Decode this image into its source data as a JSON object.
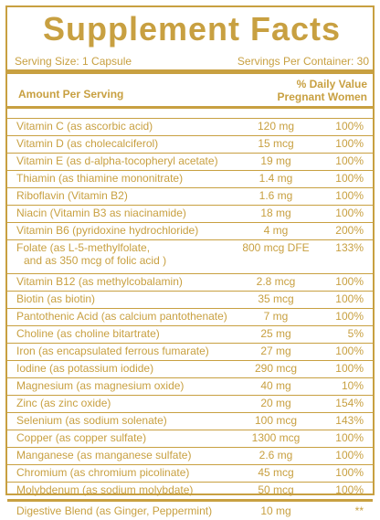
{
  "title": "Supplement Facts",
  "serving_size": "Serving Size: 1 Capsule",
  "servings_per_container": "Servings Per Container: 30",
  "header": {
    "amount_per_serving": "Amount Per Serving",
    "daily_value_line1": "% Daily Value",
    "daily_value_line2": "Pregnant Women"
  },
  "rows": [
    {
      "name": "Vitamin C (as ascorbic acid)",
      "amount": "120 mg",
      "dv": "100%"
    },
    {
      "name": "Vitamin D (as cholecalciferol)",
      "amount": "15 mcg",
      "dv": "100%"
    },
    {
      "name": "Vitamin E (as d-alpha-tocopheryl acetate)",
      "amount": "19 mg",
      "dv": "100%"
    },
    {
      "name": "Thiamin (as thiamine mononitrate)",
      "amount": "1.4 mg",
      "dv": "100%"
    },
    {
      "name": "Riboflavin (Vitamin B2)",
      "amount": "1.6 mg",
      "dv": "100%"
    },
    {
      "name": "Niacin (Vitamin B3 as niacinamide)",
      "amount": "18 mg",
      "dv": "100%"
    },
    {
      "name": "Vitamin B6 (pyridoxine hydrochloride)",
      "amount": "4 mg",
      "dv": "200%"
    },
    {
      "name": "Folate (as L-5-methylfolate,",
      "name2": "and as 350 mcg of folic acid )",
      "amount": "800 mcg DFE",
      "dv": "133%"
    },
    {
      "name": "Vitamin B12 (as methylcobalamin)",
      "amount": "2.8 mcg",
      "dv": "100%"
    },
    {
      "name": "Biotin (as biotin)",
      "amount": "35 mcg",
      "dv": "100%"
    },
    {
      "name": "Pantothenic Acid (as calcium pantothenate)",
      "amount": "7 mg",
      "dv": "100%"
    },
    {
      "name": "Choline (as choline bitartrate)",
      "amount": "25 mg",
      "dv": "5%"
    },
    {
      "name": "Iron (as encapsulated ferrous fumarate)",
      "amount": "27 mg",
      "dv": "100%"
    },
    {
      "name": "Iodine (as potassium iodide)",
      "amount": "290 mcg",
      "dv": "100%"
    },
    {
      "name": "Magnesium (as magnesium oxide)",
      "amount": "40 mg",
      "dv": "10%"
    },
    {
      "name": "Zinc (as zinc oxide)",
      "amount": "20 mg",
      "dv": "154%"
    },
    {
      "name": "Selenium (as sodium solenate)",
      "amount": "100 mcg",
      "dv": "143%"
    },
    {
      "name": "Copper (as copper sulfate)",
      "amount": "1300 mcg",
      "dv": "100%"
    },
    {
      "name": "Manganese (as manganese sulfate)",
      "amount": "2.6 mg",
      "dv": "100%"
    },
    {
      "name": "Chromium (as chromium picolinate)",
      "amount": "45 mcg",
      "dv": "100%"
    },
    {
      "name": "Molybdenum (as sodium molybdate)",
      "amount": "50 mcg",
      "dv": "100%"
    },
    {
      "name": "Digestive Blend (as Ginger, Peppermint)",
      "amount": "10 mg",
      "dv": "**"
    }
  ]
}
